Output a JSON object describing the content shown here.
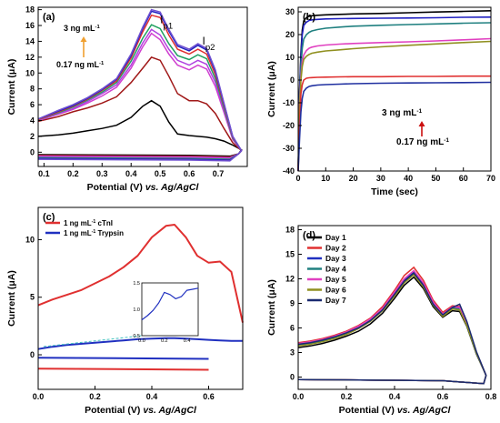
{
  "chart_data": [
    {
      "panel": "(a)",
      "type": "line",
      "xlabel": "Potential (V)",
      "xlabel_suffix": "vs. Ag/AgCl",
      "ylabel": "Current (μA)",
      "xlim": [
        0.08,
        0.8
      ],
      "ylim": [
        -1.8,
        18.3
      ],
      "xticks": [
        "0.1",
        "0.2",
        "0.3",
        "0.4",
        "0.5",
        "0.6",
        "0.7"
      ],
      "xtick_values": [
        0.1,
        0.2,
        0.3,
        0.4,
        0.5,
        0.6,
        0.7
      ],
      "yticks": [
        "0",
        "2",
        "4",
        "6",
        "8",
        "10",
        "12",
        "14",
        "16",
        "18"
      ],
      "ytick_values": [
        0,
        2,
        4,
        6,
        8,
        10,
        12,
        14,
        16,
        18
      ],
      "annotations": {
        "peak1": "I",
        "peak1_sub": "p1",
        "peak2": "I",
        "peak2_sub": "p2",
        "high_conc": "3 ng mL",
        "high_conc_sup": "-1",
        "low_conc": "0.17 ng mL",
        "low_conc_sup": "-1"
      },
      "arrow_color": "#f0a030",
      "x": [
        0.08,
        0.15,
        0.2,
        0.25,
        0.3,
        0.35,
        0.4,
        0.44,
        0.47,
        0.5,
        0.53,
        0.56,
        0.6,
        0.63,
        0.66,
        0.69,
        0.72,
        0.75,
        0.78
      ],
      "series": [
        {
          "color": "#000000",
          "baseline": -0.5,
          "values": [
            2.0,
            2.2,
            2.4,
            2.7,
            3.0,
            3.4,
            4.4,
            5.8,
            6.5,
            5.8,
            3.8,
            2.3,
            2.1,
            2.0,
            1.9,
            1.7,
            1.4,
            0.9,
            0.3
          ]
        },
        {
          "color": "#a01818",
          "baseline": -0.6,
          "values": [
            3.9,
            4.5,
            5.1,
            5.6,
            6.2,
            7.0,
            8.8,
            10.6,
            12.0,
            11.6,
            9.6,
            7.4,
            6.5,
            6.5,
            6.1,
            4.9,
            3.0,
            1.2,
            0.2
          ]
        },
        {
          "color": "#d040d0",
          "baseline": -0.7,
          "values": [
            4.0,
            4.8,
            5.4,
            6.2,
            7.1,
            8.2,
            10.6,
            13.3,
            15.0,
            14.2,
            12.4,
            11.0,
            10.4,
            11.0,
            10.5,
            8.3,
            5.0,
            1.6,
            0.2
          ]
        },
        {
          "color": "#b040e0",
          "baseline": -0.8,
          "values": [
            4.0,
            4.9,
            5.5,
            6.4,
            7.4,
            8.5,
            11.0,
            13.8,
            15.5,
            14.8,
            13.0,
            11.6,
            11.0,
            11.6,
            11.1,
            8.8,
            5.3,
            1.7,
            0.2
          ]
        },
        {
          "color": "#20a060",
          "baseline": -0.9,
          "values": [
            4.1,
            5.0,
            5.7,
            6.6,
            7.6,
            8.8,
            11.5,
            14.4,
            16.1,
            15.6,
            13.7,
            12.2,
            11.7,
            12.3,
            11.8,
            9.3,
            5.6,
            1.8,
            0.2
          ]
        },
        {
          "color": "#e03030",
          "baseline": -1.0,
          "values": [
            4.1,
            5.1,
            5.8,
            6.7,
            7.8,
            9.0,
            11.9,
            15.2,
            17.3,
            17.0,
            14.8,
            13.0,
            12.4,
            13.0,
            12.4,
            9.8,
            5.9,
            1.9,
            0.2
          ]
        },
        {
          "color": "#2020c0",
          "baseline": -1.0,
          "values": [
            4.2,
            5.2,
            5.9,
            6.8,
            7.9,
            9.2,
            12.2,
            15.6,
            17.8,
            17.5,
            15.3,
            13.4,
            12.8,
            13.5,
            12.9,
            10.2,
            6.1,
            2.0,
            0.2
          ]
        },
        {
          "color": "#7050d0",
          "baseline": -1.1,
          "values": [
            4.2,
            5.3,
            6.0,
            6.9,
            8.0,
            9.3,
            12.4,
            15.8,
            18.0,
            17.7,
            15.5,
            13.6,
            13.0,
            13.7,
            13.1,
            10.4,
            6.2,
            2.0,
            0.2
          ]
        }
      ]
    },
    {
      "panel": "(b)",
      "type": "line",
      "xlabel": "Time (sec)",
      "ylabel": "Current (μA)",
      "xlim": [
        0,
        70
      ],
      "ylim": [
        -40,
        32
      ],
      "xticks": [
        "0",
        "10",
        "20",
        "30",
        "40",
        "50",
        "60",
        "70"
      ],
      "xtick_values": [
        0,
        10,
        20,
        30,
        40,
        50,
        60,
        70
      ],
      "yticks": [
        "-40",
        "-30",
        "-20",
        "-10",
        "0",
        "10",
        "20",
        "30"
      ],
      "ytick_values": [
        -40,
        -30,
        -20,
        -10,
        0,
        10,
        20,
        30
      ],
      "annotations": {
        "high_conc": "3 ng mL",
        "high_conc_sup": "-1",
        "low_conc": "0.17 ng mL",
        "low_conc_sup": "-1"
      },
      "arrow_color": "#cc1010",
      "x": [
        0,
        0.5,
        1,
        1.5,
        2,
        3,
        4,
        5,
        7,
        10,
        15,
        20,
        30,
        40,
        50,
        60,
        70
      ],
      "series": [
        {
          "color": "#000000",
          "values": [
            -40,
            -5,
            12,
            22,
            26,
            27.5,
            28,
            28.3,
            28.5,
            28.7,
            28.9,
            29.1,
            29.3,
            29.6,
            29.9,
            30.2,
            30.5
          ]
        },
        {
          "color": "#2020c0",
          "values": [
            -40,
            -6,
            10,
            20,
            24,
            25.5,
            26.2,
            26.5,
            26.7,
            26.9,
            27.0,
            27.1,
            27.2,
            27.3,
            27.4,
            27.6,
            27.7
          ]
        },
        {
          "color": "#208080",
          "values": [
            -40,
            -8,
            6,
            14,
            18,
            20,
            21,
            21.6,
            22.2,
            22.8,
            23.3,
            23.7,
            24.1,
            24.4,
            24.7,
            25.0,
            25.2
          ]
        },
        {
          "color": "#e040c0",
          "values": [
            -40,
            -10,
            2,
            8,
            11,
            13,
            14,
            14.5,
            15.0,
            15.4,
            15.8,
            16.1,
            16.5,
            16.8,
            17.2,
            17.7,
            18.2
          ]
        },
        {
          "color": "#909020",
          "values": [
            -40,
            -12,
            0,
            6,
            9,
            10.5,
            11.3,
            11.8,
            12.3,
            12.8,
            13.3,
            13.8,
            14.6,
            15.3,
            15.9,
            16.5,
            17.0
          ]
        },
        {
          "color": "#e03030",
          "values": [
            -40,
            -20,
            -6,
            -2,
            0,
            0.8,
            1.0,
            1.1,
            1.2,
            1.3,
            1.4,
            1.5,
            1.5,
            1.6,
            1.6,
            1.7,
            1.7
          ]
        },
        {
          "color": "#2030a0",
          "values": [
            -40,
            -26,
            -14,
            -8,
            -5,
            -3.5,
            -2.8,
            -2.5,
            -2.2,
            -2.0,
            -1.8,
            -1.6,
            -1.4,
            -1.3,
            -1.2,
            -1.1,
            -1.0
          ]
        }
      ]
    },
    {
      "panel": "(c)",
      "type": "line",
      "xlabel": "Potential (V)",
      "xlabel_suffix": "vs. Ag/AgCl",
      "ylabel": "Current (μA)",
      "xlim": [
        0,
        0.72
      ],
      "ylim": [
        -3,
        12.8
      ],
      "xticks": [
        "0.0",
        "0.2",
        "0.4",
        "0.6"
      ],
      "xtick_values": [
        0,
        0.2,
        0.4,
        0.6
      ],
      "yticks": [
        "0",
        "5",
        "10"
      ],
      "ytick_values": [
        0,
        5,
        10
      ],
      "legend_position": "top-left",
      "legend": [
        {
          "label": "1 ng mL",
          "sup": "-1",
          "suffix": " cTnI",
          "color": "#e03030"
        },
        {
          "label": "1 ng mL",
          "sup": "-1",
          "suffix": " Trypsin",
          "color": "#2030c0"
        }
      ],
      "x": [
        0,
        0.05,
        0.1,
        0.15,
        0.2,
        0.25,
        0.3,
        0.35,
        0.4,
        0.45,
        0.48,
        0.52,
        0.56,
        0.6,
        0.64,
        0.68,
        0.72
      ],
      "series": [
        {
          "name": "cTnI",
          "color": "#e03030",
          "forward": [
            4.3,
            4.8,
            5.2,
            5.6,
            6.2,
            6.8,
            7.6,
            8.6,
            10.2,
            11.2,
            11.3,
            10.2,
            8.6,
            8.0,
            8.1,
            7.2,
            2.8
          ],
          "reverse_y": -1.2
        },
        {
          "name": "Trypsin",
          "color": "#2030c0",
          "forward": [
            0.5,
            0.7,
            0.85,
            0.95,
            1.05,
            1.15,
            1.25,
            1.35,
            1.4,
            1.45,
            1.45,
            1.4,
            1.35,
            1.3,
            1.25,
            1.2,
            1.2
          ],
          "reverse_y": -0.25
        }
      ],
      "inset": {
        "xlim": [
          0,
          0.5
        ],
        "ylim": [
          0.5,
          1.5
        ],
        "xticks": [
          "0.0",
          "0.2",
          "0.4"
        ],
        "xtick_values": [
          0,
          0.2,
          0.4
        ],
        "yticks": [
          "0.5",
          "1.0",
          "1.5"
        ],
        "ytick_values": [
          0.5,
          1.0,
          1.5
        ],
        "x": [
          0,
          0.05,
          0.1,
          0.15,
          0.2,
          0.25,
          0.3,
          0.35,
          0.4,
          0.45,
          0.5
        ],
        "values": [
          0.8,
          0.88,
          0.98,
          1.12,
          1.32,
          1.28,
          1.2,
          1.24,
          1.36,
          1.38,
          1.4
        ],
        "color": "#2030c0"
      }
    },
    {
      "panel": "(d)",
      "type": "line",
      "xlabel": "Potential (V)",
      "xlabel_suffix": "vs. Ag/AgCl",
      "ylabel": "Current (μA)",
      "xlim": [
        0,
        0.8
      ],
      "ylim": [
        -1.5,
        18.5
      ],
      "xticks": [
        "0.0",
        "0.2",
        "0.4",
        "0.6",
        "0.8"
      ],
      "xtick_values": [
        0,
        0.2,
        0.4,
        0.6,
        0.8
      ],
      "yticks": [
        "0",
        "3",
        "6",
        "9",
        "12",
        "15",
        "18"
      ],
      "ytick_values": [
        0,
        3,
        6,
        9,
        12,
        15,
        18
      ],
      "legend_position": "top-left",
      "x": [
        0.0,
        0.05,
        0.1,
        0.15,
        0.2,
        0.25,
        0.3,
        0.35,
        0.4,
        0.44,
        0.48,
        0.52,
        0.56,
        0.6,
        0.64,
        0.67,
        0.7,
        0.74,
        0.78
      ],
      "series": [
        {
          "name": "Day 1",
          "color": "#000000",
          "values": [
            3.6,
            3.8,
            4.1,
            4.5,
            5.0,
            5.6,
            6.5,
            7.8,
            9.6,
            11.2,
            12.2,
            10.8,
            8.6,
            7.3,
            8.1,
            8.0,
            6.2,
            2.8,
            0.2
          ]
        },
        {
          "name": "Day 2",
          "color": "#e03030",
          "values": [
            4.2,
            4.4,
            4.7,
            5.1,
            5.6,
            6.3,
            7.2,
            8.6,
            10.6,
            12.4,
            13.4,
            11.8,
            9.4,
            7.9,
            8.7,
            8.6,
            6.6,
            3.0,
            0.2
          ]
        },
        {
          "name": "Day 3",
          "color": "#2030c0",
          "values": [
            4.0,
            4.2,
            4.5,
            4.9,
            5.4,
            6.1,
            7.0,
            8.3,
            10.2,
            11.8,
            12.8,
            11.3,
            9.0,
            7.6,
            8.5,
            8.4,
            6.4,
            2.9,
            0.2
          ]
        },
        {
          "name": "Day 4",
          "color": "#208080",
          "values": [
            3.9,
            4.1,
            4.4,
            4.8,
            5.3,
            6.0,
            6.9,
            8.2,
            10.0,
            11.6,
            12.6,
            11.1,
            8.8,
            7.5,
            8.4,
            8.3,
            6.3,
            2.9,
            0.2
          ]
        },
        {
          "name": "Day 5",
          "color": "#e040c0",
          "values": [
            4.1,
            4.3,
            4.6,
            5.0,
            5.5,
            6.2,
            7.1,
            8.4,
            10.4,
            12.0,
            13.0,
            11.5,
            9.2,
            7.7,
            8.6,
            8.5,
            6.5,
            3.0,
            0.2
          ]
        },
        {
          "name": "Day 6",
          "color": "#909020",
          "values": [
            3.8,
            4.0,
            4.3,
            4.7,
            5.2,
            5.9,
            6.8,
            8.1,
            9.9,
            11.5,
            12.5,
            11.0,
            8.8,
            7.4,
            8.3,
            8.2,
            6.3,
            2.9,
            0.2
          ]
        },
        {
          "name": "Day 7",
          "color": "#1a2a70",
          "values": [
            4.0,
            4.2,
            4.5,
            4.9,
            5.4,
            6.0,
            6.9,
            8.2,
            10.1,
            11.7,
            12.7,
            11.2,
            8.9,
            7.6,
            8.5,
            8.9,
            6.8,
            3.1,
            0.2
          ]
        }
      ],
      "reverse_y": -0.3
    }
  ]
}
